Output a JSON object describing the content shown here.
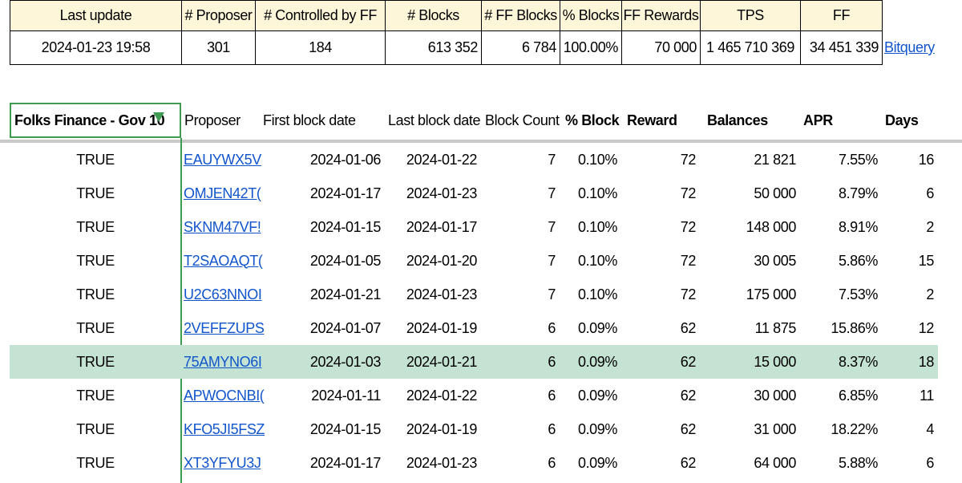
{
  "summary": {
    "headers": [
      "Last update",
      "# Proposer",
      "# Controlled by FF",
      "# Blocks",
      "# FF Blocks",
      "% Blocks",
      "FF Rewards",
      "TPS",
      "FF"
    ],
    "values": [
      "2024-01-23 19:58",
      "301",
      "184",
      "613 352",
      "6 784",
      "100.00%",
      "70 000",
      "1 465 710 369",
      "34 451 339"
    ],
    "link": "Bitquery"
  },
  "table": {
    "headers": [
      "Folks Finance - Gov 10",
      "Proposer",
      "First block date",
      "Last block date",
      "Block Count",
      "% Block",
      "Reward",
      "Balances",
      "APR",
      "Days"
    ],
    "rows": [
      [
        "TRUE",
        "EAUYWX5V",
        "2024-01-06",
        "2024-01-22",
        "7",
        "0.10%",
        "72",
        "21 821",
        "7.55%",
        "16"
      ],
      [
        "TRUE",
        "OMJEN42T(",
        "2024-01-17",
        "2024-01-23",
        "7",
        "0.10%",
        "72",
        "50 000",
        "8.79%",
        "6"
      ],
      [
        "TRUE",
        "SKNM47VF!",
        "2024-01-15",
        "2024-01-17",
        "7",
        "0.10%",
        "72",
        "148 000",
        "8.91%",
        "2"
      ],
      [
        "TRUE",
        "T2SAOAQT(",
        "2024-01-05",
        "2024-01-20",
        "7",
        "0.10%",
        "72",
        "30 005",
        "5.86%",
        "15"
      ],
      [
        "TRUE",
        "U2C63NNOI",
        "2024-01-21",
        "2024-01-23",
        "7",
        "0.10%",
        "72",
        "175 000",
        "7.53%",
        "2"
      ],
      [
        "TRUE",
        "2VEFFZUPS",
        "2024-01-07",
        "2024-01-19",
        "6",
        "0.09%",
        "62",
        "11 875",
        "15.86%",
        "12"
      ],
      [
        "TRUE",
        "75AMYNO6I",
        "2024-01-03",
        "2024-01-21",
        "6",
        "0.09%",
        "62",
        "15 000",
        "8.37%",
        "18"
      ],
      [
        "TRUE",
        "APWOCNBI(",
        "2024-01-11",
        "2024-01-22",
        "6",
        "0.09%",
        "62",
        "30 000",
        "6.85%",
        "11"
      ],
      [
        "TRUE",
        "KFO5JI5FSZ",
        "2024-01-15",
        "2024-01-19",
        "6",
        "0.09%",
        "62",
        "31 000",
        "18.22%",
        "4"
      ],
      [
        "TRUE",
        "XT3YFYU3J",
        "2024-01-17",
        "2024-01-23",
        "6",
        "0.09%",
        "62",
        "64 000",
        "5.88%",
        "6"
      ]
    ]
  }
}
